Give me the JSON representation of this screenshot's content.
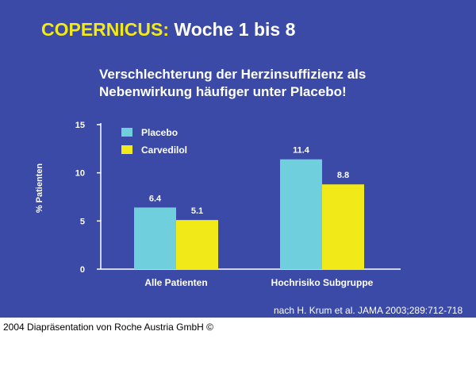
{
  "header": {
    "title_accent": "COPERNICUS:",
    "title_rest": " Woche 1 bis 8",
    "subtitle_line1": "Verschlechterung der Herzinsuffizienz als",
    "subtitle_line2": "Nebenwirkung häufiger unter Placebo!"
  },
  "source": "nach H. Krum et al. JAMA 2003;289:712-718",
  "footer": "2004 Diapräsentation von Roche Austria GmbH ©",
  "colors": {
    "background": "#3a4aa6",
    "title_accent": "#f2ea18",
    "placebo": "#6fcfdc",
    "carvedilol": "#f2ea18"
  },
  "chart_data": {
    "type": "bar",
    "title": "",
    "xlabel": "",
    "ylabel": "% Patienten",
    "ylim": [
      0,
      15
    ],
    "yticks": [
      "0",
      "5",
      "10",
      "15"
    ],
    "categories": [
      "Alle Patienten",
      "Hochrisiko Subgruppe"
    ],
    "series": [
      {
        "name": "Placebo",
        "values": [
          6.4,
          11.4
        ],
        "labels": [
          "6.4",
          "11.4"
        ]
      },
      {
        "name": "Carvedilol",
        "values": [
          5.1,
          8.8
        ],
        "labels": [
          "5.1",
          "8.8"
        ]
      }
    ],
    "legend": "top-left",
    "grid": false
  }
}
